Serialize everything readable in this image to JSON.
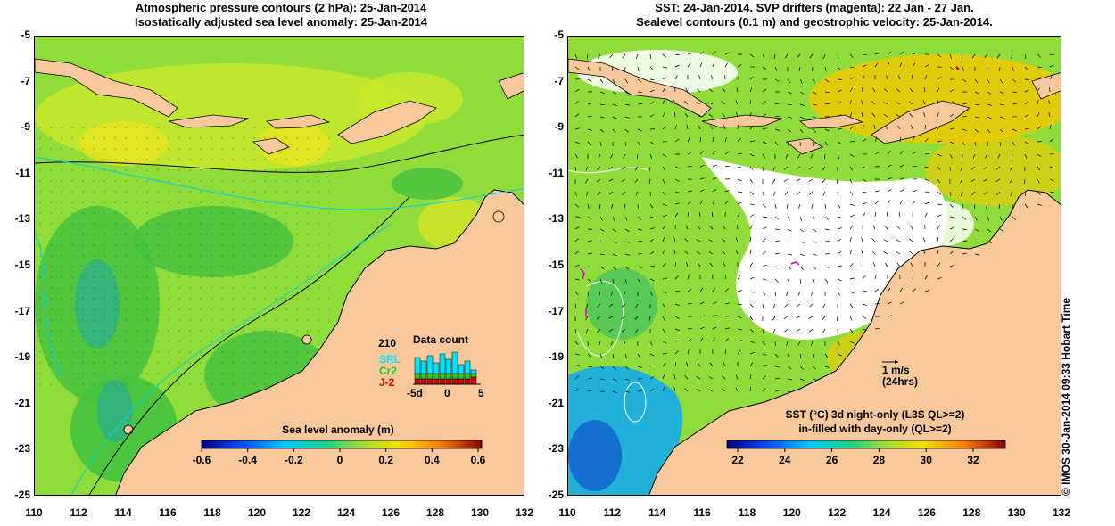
{
  "left_title": {
    "line1": "Atmospheric pressure contours (2 hPa): 25-Jan-2014",
    "line2": "Isostatically adjusted sea level anomaly: 25-Jan-2014"
  },
  "right_title": {
    "line1": "SST: 24-Jan-2014. SVP drifters (magenta): 22 Jan - 27 Jan.",
    "line2": "Sealevel contours (0.1 m) and geostrophic velocity: 25-Jan-2014."
  },
  "axes": {
    "lat_ticks": [
      "-5",
      "-7",
      "-9",
      "-11",
      "-13",
      "-15",
      "-17",
      "-19",
      "-21",
      "-23",
      "-25"
    ],
    "lon_ticks": [
      "110",
      "112",
      "114",
      "116",
      "118",
      "120",
      "122",
      "124",
      "126",
      "128",
      "130",
      "132"
    ],
    "lat_range": [
      -25,
      -5
    ],
    "lon_range": [
      110,
      132
    ]
  },
  "left_colorbar": {
    "title": "Sea level anomaly (m)",
    "ticks": [
      "-0.6",
      "-0.4",
      "-0.2",
      "0",
      "0.2",
      "0.4",
      "0.6"
    ]
  },
  "right_colorbar": {
    "title_line1": "SST (°C)  3d night-only (L3S QL>=2)",
    "title_line2": "in-filled with day-only (QL>=2)",
    "ticks": [
      "22",
      "24",
      "26",
      "28",
      "30",
      "32"
    ]
  },
  "data_count": {
    "title": "Data count",
    "max_label": "210",
    "series": [
      {
        "name": "SRL",
        "color": "#00e5ff"
      },
      {
        "name": "Cr2",
        "color": "#22cc22"
      },
      {
        "name": "J-2",
        "color": "#dd0000"
      }
    ],
    "x_ticks": [
      "-5d",
      "0",
      "5"
    ]
  },
  "velocity_scale": {
    "label": "1 m/s",
    "sublabel": "(24hrs)"
  },
  "side_credit": "© IMOS 30-Jan-2014 09:33 Hobart Time",
  "colors": {
    "land": "#f7c89b",
    "ocean_green": "#8fdc3a",
    "sst_white": "#ffffff"
  }
}
